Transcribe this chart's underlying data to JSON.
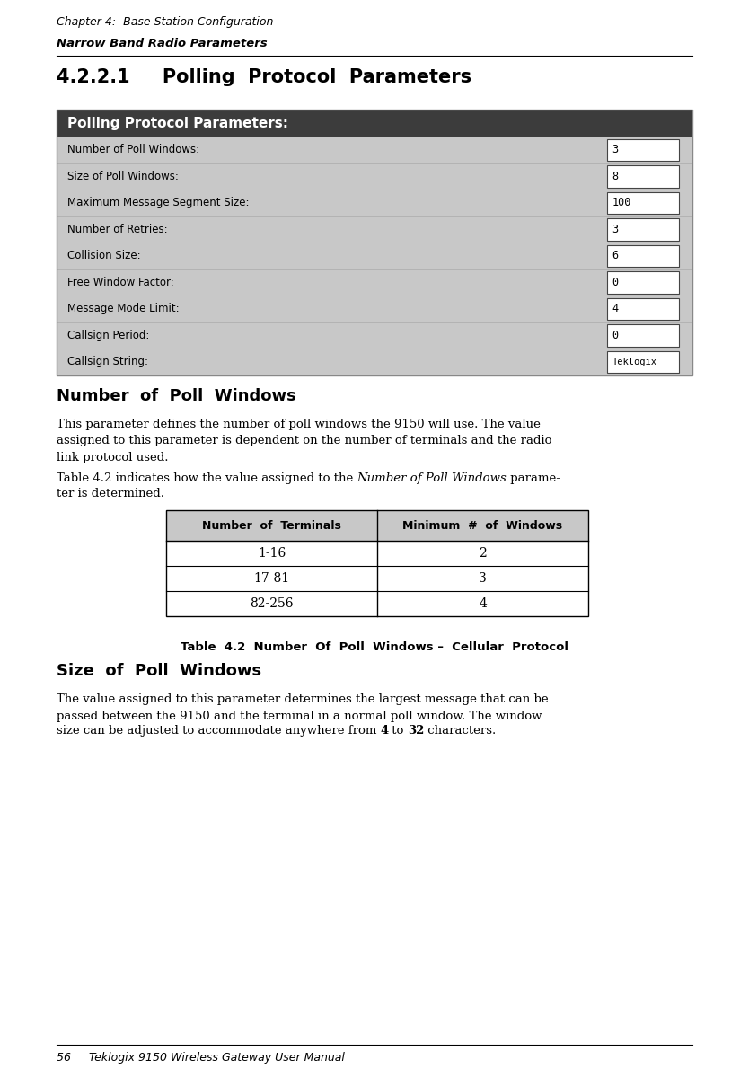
{
  "page_width": 8.34,
  "page_height": 11.99,
  "bg_color": "#ffffff",
  "header_line1": "Chapter 4:  Base Station Configuration",
  "header_line2": "Narrow Band Radio Parameters",
  "section_title": "4.2.2.1     Polling  Protocol  Parameters",
  "ui_header_text": "Polling Protocol Parameters:",
  "ui_header_bg": "#3c3c3c",
  "ui_header_fg": "#ffffff",
  "ui_row_bg": "#c8c8c8",
  "ui_sep_color": "#aaaaaa",
  "ui_rows": [
    {
      "label": "Number of Poll Windows:",
      "value": "3"
    },
    {
      "label": "Size of Poll Windows:",
      "value": "8"
    },
    {
      "label": "Maximum Message Segment Size:",
      "value": "100"
    },
    {
      "label": "Number of Retries:",
      "value": "3"
    },
    {
      "label": "Collision Size:",
      "value": "6"
    },
    {
      "label": "Free Window Factor:",
      "value": "0"
    },
    {
      "label": "Message Mode Limit:",
      "value": "4"
    },
    {
      "label": "Callsign Period:",
      "value": "0"
    },
    {
      "label": "Callsign String:",
      "value": "Teklogix"
    }
  ],
  "subheading1": "Number  of  Poll  Windows",
  "body1": "This parameter defines the number of poll windows the 9150 will use. The value\nassigned to this parameter is dependent on the number of terminals and the radio\nlink protocol used.",
  "body2_pre": "Table 4.2 indicates how the value assigned to the ",
  "body2_italic": "Number of Poll Windows",
  "body2_post1": " parame-",
  "body2_post2": "ter is determined.",
  "table_col1_header": "Number  of  Terminals",
  "table_col2_header": "Minimum  #  of  Windows",
  "table_header_bg": "#c8c8c8",
  "table_rows": [
    {
      "col1": "1-16",
      "col2": "2"
    },
    {
      "col1": "17-81",
      "col2": "3"
    },
    {
      "col1": "82-256",
      "col2": "4"
    }
  ],
  "table_caption": "Table  4.2  Number  Of  Poll  Windows –  Cellular  Protocol",
  "subheading2": "Size  of  Poll  Windows",
  "body3_pre": "The value assigned to this parameter determines the largest message that can be\npassed between the 9150 and the terminal in a normal poll window. The window\nsize can be adjusted to accommodate anywhere from ",
  "body3_bold1": "4",
  "body3_mid": " to ",
  "body3_bold2": "32",
  "body3_end": " characters.",
  "footer_text": "56     Teklogix 9150 Wireless Gateway User Manual",
  "lm": 0.075,
  "rm": 0.925
}
